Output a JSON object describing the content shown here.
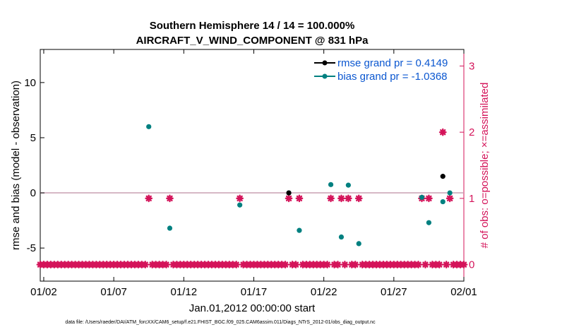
{
  "chart_data": {
    "type": "scatter",
    "title_line1": "Southern Hemisphere 14 / 14 = 100.000%",
    "title_line2": "AIRCRAFT_V_WIND_COMPONENT @ 831 hPa",
    "xlabel": "Jan.01,2012 00:00:00 start",
    "ylabel_left": "rmse and bias (model - observation)",
    "ylabel_right": "# of obs: o=possible; ×=assimilated",
    "footer": "data file: /Users/raeder/DAI/ATM_forcXX/CAM6_setup/f.e21.FHIST_BGC.f09_025.CAM6assim.011/Diags_NTrS_2012-01/obs_diag_output.nc",
    "x_ticks": [
      {
        "label": "01/02",
        "value": 1
      },
      {
        "label": "01/07",
        "value": 6
      },
      {
        "label": "01/12",
        "value": 11
      },
      {
        "label": "01/17",
        "value": 16
      },
      {
        "label": "01/22",
        "value": 21
      },
      {
        "label": "01/27",
        "value": 26
      },
      {
        "label": "02/01",
        "value": 31
      }
    ],
    "xlim": [
      0.75,
      31.0
    ],
    "ylim_left": [
      -8,
      13
    ],
    "yticks_left": [
      -5,
      0,
      5,
      10
    ],
    "ylim_right": [
      -0.25,
      3.25
    ],
    "yticks_right": [
      0,
      1,
      2,
      3
    ],
    "zero_line_color": "#c9a0b4",
    "colors": {
      "rmse": "#000000",
      "bias": "#008080",
      "obs": "#d4145a",
      "right_axis": "#d4145a",
      "legend_text": "#0b57d0"
    },
    "series": [
      {
        "name": "rmse grand pr = 0.4149",
        "kind": "rmse",
        "points": [
          [
            18.5,
            0
          ],
          [
            29.5,
            1.5
          ]
        ]
      },
      {
        "name": "bias grand pr = -1.0368",
        "kind": "bias",
        "points": [
          [
            8.5,
            6
          ],
          [
            10.0,
            -3.2
          ],
          [
            15.0,
            -1.1
          ],
          [
            18.5,
            0
          ],
          [
            19.25,
            -3.4
          ],
          [
            21.5,
            0.75
          ],
          [
            22.25,
            -4.0
          ],
          [
            22.75,
            0.7
          ],
          [
            23.5,
            -4.6
          ],
          [
            28.0,
            -0.4
          ],
          [
            28.5,
            -2.7
          ],
          [
            29.5,
            -0.8
          ],
          [
            30.0,
            0
          ]
        ]
      }
    ],
    "obs_counts": {
      "x_start": 0.75,
      "x_step": 0.25,
      "default": 0,
      "nonzero": [
        {
          "x": 8.5,
          "count": 1
        },
        {
          "x": 10.0,
          "count": 1
        },
        {
          "x": 15.0,
          "count": 1
        },
        {
          "x": 18.5,
          "count": 1
        },
        {
          "x": 19.25,
          "count": 1
        },
        {
          "x": 21.5,
          "count": 1
        },
        {
          "x": 22.25,
          "count": 1
        },
        {
          "x": 22.75,
          "count": 1
        },
        {
          "x": 23.5,
          "count": 1
        },
        {
          "x": 28.0,
          "count": 1
        },
        {
          "x": 28.5,
          "count": 1
        },
        {
          "x": 29.5,
          "count": 2
        },
        {
          "x": 30.0,
          "count": 1
        }
      ]
    }
  }
}
